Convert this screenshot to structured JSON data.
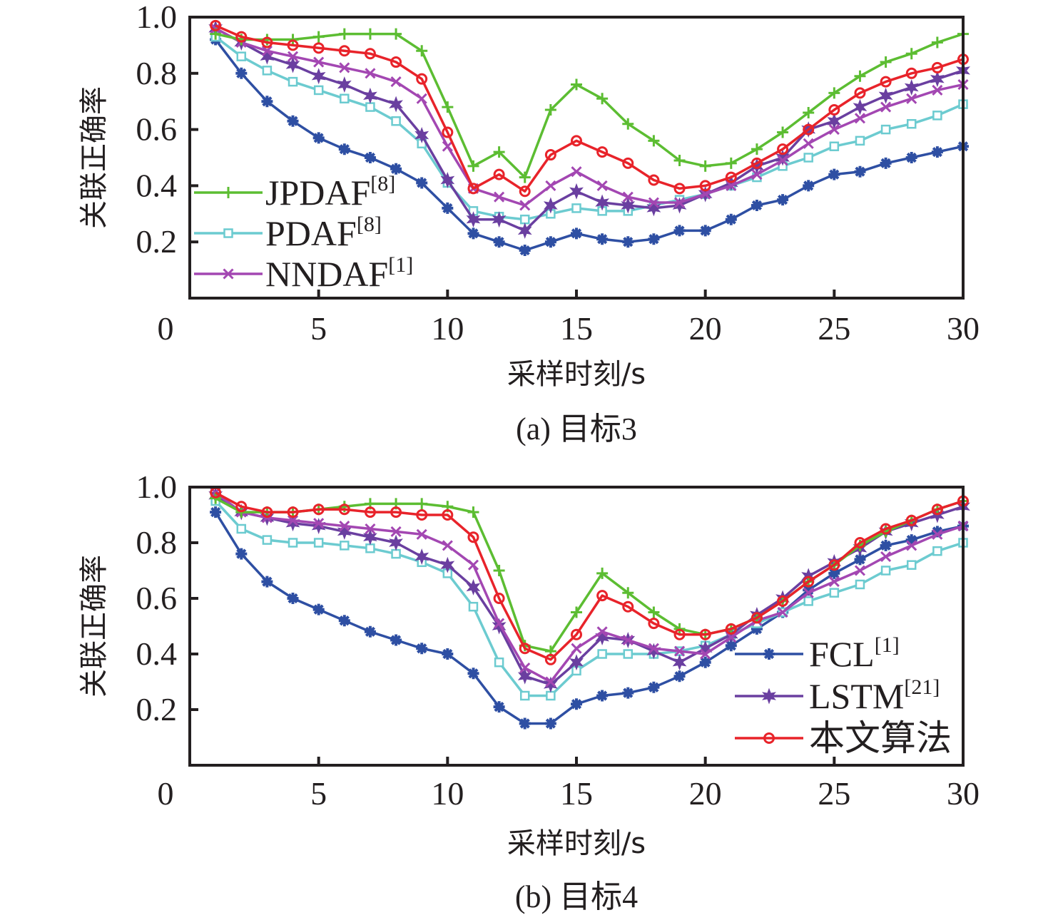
{
  "chart_data": [
    {
      "type": "line",
      "panel": "a",
      "caption": "(a) 目标3",
      "xlabel": "采样时刻/s",
      "ylabel": "关联正确率",
      "xlim": [
        0,
        30
      ],
      "ylim": [
        0,
        1.0
      ],
      "xticks": [
        0,
        5,
        10,
        15,
        20,
        25,
        30
      ],
      "yticks": [
        0.2,
        0.4,
        0.6,
        0.8,
        1.0
      ],
      "ytick_labels": [
        "0.2",
        "0.4",
        "0.6",
        "0.8",
        "1.0"
      ],
      "xtick_labels": [
        "0",
        "5",
        "10",
        "15",
        "20",
        "25",
        "30"
      ],
      "grid": false,
      "legend_placement": "left-bottom",
      "legend_entries": [
        {
          "name": "JPDAF",
          "ref": "[8]"
        },
        {
          "name": "PDAF",
          "ref": "[8]"
        },
        {
          "name": "NNDAF",
          "ref": "[1]"
        }
      ],
      "x": [
        1,
        2,
        3,
        4,
        5,
        6,
        7,
        8,
        9,
        10,
        11,
        12,
        13,
        14,
        15,
        16,
        17,
        18,
        19,
        20,
        21,
        22,
        23,
        24,
        25,
        26,
        27,
        28,
        29,
        30
      ],
      "series": [
        {
          "name": "FCL[1]",
          "color": "#2e4fa3",
          "marker": "asterisk",
          "values": [
            0.92,
            0.8,
            0.7,
            0.63,
            0.57,
            0.53,
            0.5,
            0.46,
            0.41,
            0.32,
            0.23,
            0.2,
            0.17,
            0.2,
            0.23,
            0.21,
            0.2,
            0.21,
            0.24,
            0.24,
            0.28,
            0.33,
            0.35,
            0.4,
            0.44,
            0.45,
            0.48,
            0.5,
            0.52,
            0.54
          ]
        },
        {
          "name": "PDAF[8]",
          "color": "#6ccbd0",
          "marker": "square",
          "values": [
            0.93,
            0.86,
            0.81,
            0.77,
            0.74,
            0.71,
            0.68,
            0.63,
            0.55,
            0.41,
            0.31,
            0.29,
            0.28,
            0.3,
            0.32,
            0.31,
            0.31,
            0.33,
            0.35,
            0.37,
            0.4,
            0.43,
            0.47,
            0.5,
            0.54,
            0.56,
            0.6,
            0.62,
            0.65,
            0.69
          ]
        },
        {
          "name": "LSTM[21]",
          "color": "#6a3fa0",
          "marker": "star",
          "values": [
            0.96,
            0.91,
            0.86,
            0.83,
            0.79,
            0.76,
            0.72,
            0.69,
            0.58,
            0.42,
            0.28,
            0.28,
            0.24,
            0.33,
            0.38,
            0.34,
            0.33,
            0.32,
            0.33,
            0.37,
            0.41,
            0.47,
            0.5,
            0.6,
            0.63,
            0.68,
            0.72,
            0.75,
            0.78,
            0.81
          ]
        },
        {
          "name": "NNDAF[1]",
          "color": "#a347b2",
          "marker": "x",
          "values": [
            0.96,
            0.91,
            0.88,
            0.86,
            0.84,
            0.82,
            0.8,
            0.77,
            0.71,
            0.54,
            0.39,
            0.36,
            0.33,
            0.4,
            0.45,
            0.4,
            0.36,
            0.34,
            0.34,
            0.37,
            0.4,
            0.44,
            0.49,
            0.55,
            0.6,
            0.64,
            0.68,
            0.71,
            0.74,
            0.76
          ]
        },
        {
          "name": "JPDAF[8]",
          "color": "#5cbd32",
          "marker": "plus",
          "values": [
            0.94,
            0.92,
            0.92,
            0.92,
            0.93,
            0.94,
            0.94,
            0.94,
            0.88,
            0.68,
            0.47,
            0.52,
            0.43,
            0.67,
            0.76,
            0.71,
            0.62,
            0.56,
            0.49,
            0.47,
            0.48,
            0.53,
            0.59,
            0.66,
            0.73,
            0.79,
            0.84,
            0.87,
            0.91,
            0.94
          ]
        },
        {
          "name": "本文算法",
          "color": "#e8232a",
          "marker": "circle",
          "values": [
            0.97,
            0.93,
            0.91,
            0.9,
            0.89,
            0.88,
            0.87,
            0.84,
            0.78,
            0.59,
            0.39,
            0.44,
            0.38,
            0.51,
            0.56,
            0.52,
            0.48,
            0.42,
            0.39,
            0.4,
            0.43,
            0.48,
            0.53,
            0.6,
            0.67,
            0.73,
            0.77,
            0.8,
            0.82,
            0.85
          ]
        }
      ]
    },
    {
      "type": "line",
      "panel": "b",
      "caption": "(b) 目标4",
      "xlabel": "采样时刻/s",
      "ylabel": "关联正确率",
      "xlim": [
        0,
        30
      ],
      "ylim": [
        0,
        1.0
      ],
      "xticks": [
        0,
        5,
        10,
        15,
        20,
        25,
        30
      ],
      "yticks": [
        0.2,
        0.4,
        0.6,
        0.8,
        1.0
      ],
      "ytick_labels": [
        "0.2",
        "0.4",
        "0.6",
        "0.8",
        "1.0"
      ],
      "xtick_labels": [
        "0",
        "5",
        "10",
        "15",
        "20",
        "25",
        "30"
      ],
      "grid": false,
      "legend_placement": "bottom-right",
      "legend_entries": [
        {
          "name": "FCL",
          "ref": "[1]"
        },
        {
          "name": "LSTM",
          "ref": "[21]"
        },
        {
          "name": "本文算法",
          "ref": ""
        }
      ],
      "x": [
        1,
        2,
        3,
        4,
        5,
        6,
        7,
        8,
        9,
        10,
        11,
        12,
        13,
        14,
        15,
        16,
        17,
        18,
        19,
        20,
        21,
        22,
        23,
        24,
        25,
        26,
        27,
        28,
        29,
        30
      ],
      "series": [
        {
          "name": "FCL[1]",
          "color": "#2e4fa3",
          "marker": "asterisk",
          "values": [
            0.91,
            0.76,
            0.66,
            0.6,
            0.56,
            0.52,
            0.48,
            0.45,
            0.42,
            0.4,
            0.33,
            0.21,
            0.15,
            0.15,
            0.22,
            0.25,
            0.26,
            0.28,
            0.32,
            0.37,
            0.43,
            0.49,
            0.55,
            0.63,
            0.69,
            0.74,
            0.79,
            0.81,
            0.84,
            0.86
          ]
        },
        {
          "name": "PDAF[8]",
          "color": "#6ccbd0",
          "marker": "square",
          "values": [
            0.95,
            0.85,
            0.81,
            0.8,
            0.8,
            0.79,
            0.78,
            0.76,
            0.73,
            0.69,
            0.57,
            0.37,
            0.25,
            0.25,
            0.34,
            0.4,
            0.4,
            0.4,
            0.41,
            0.43,
            0.47,
            0.51,
            0.55,
            0.59,
            0.62,
            0.65,
            0.7,
            0.72,
            0.77,
            0.8
          ]
        },
        {
          "name": "LSTM[21]",
          "color": "#6a3fa0",
          "marker": "star",
          "values": [
            0.97,
            0.91,
            0.89,
            0.87,
            0.86,
            0.84,
            0.82,
            0.8,
            0.75,
            0.72,
            0.64,
            0.5,
            0.32,
            0.29,
            0.37,
            0.46,
            0.45,
            0.41,
            0.37,
            0.42,
            0.47,
            0.54,
            0.6,
            0.68,
            0.73,
            0.78,
            0.84,
            0.87,
            0.9,
            0.93
          ]
        },
        {
          "name": "NNDAF[1]",
          "color": "#a347b2",
          "marker": "x",
          "values": [
            0.98,
            0.91,
            0.89,
            0.88,
            0.87,
            0.86,
            0.85,
            0.84,
            0.83,
            0.79,
            0.72,
            0.51,
            0.35,
            0.3,
            0.42,
            0.48,
            0.45,
            0.42,
            0.41,
            0.4,
            0.46,
            0.52,
            0.55,
            0.62,
            0.66,
            0.7,
            0.75,
            0.79,
            0.83,
            0.86
          ]
        },
        {
          "name": "JPDAF[8]",
          "color": "#5cbd32",
          "marker": "plus",
          "values": [
            0.96,
            0.91,
            0.91,
            0.91,
            0.92,
            0.93,
            0.94,
            0.94,
            0.94,
            0.93,
            0.91,
            0.7,
            0.43,
            0.41,
            0.55,
            0.69,
            0.62,
            0.55,
            0.49,
            0.47,
            0.49,
            0.53,
            0.59,
            0.66,
            0.72,
            0.79,
            0.84,
            0.88,
            0.92,
            0.95
          ]
        },
        {
          "name": "本文算法",
          "color": "#e8232a",
          "marker": "circle",
          "values": [
            0.98,
            0.93,
            0.91,
            0.91,
            0.92,
            0.92,
            0.91,
            0.91,
            0.9,
            0.9,
            0.82,
            0.6,
            0.42,
            0.38,
            0.47,
            0.61,
            0.57,
            0.51,
            0.47,
            0.47,
            0.49,
            0.53,
            0.59,
            0.66,
            0.72,
            0.8,
            0.85,
            0.88,
            0.92,
            0.95
          ]
        }
      ]
    }
  ]
}
